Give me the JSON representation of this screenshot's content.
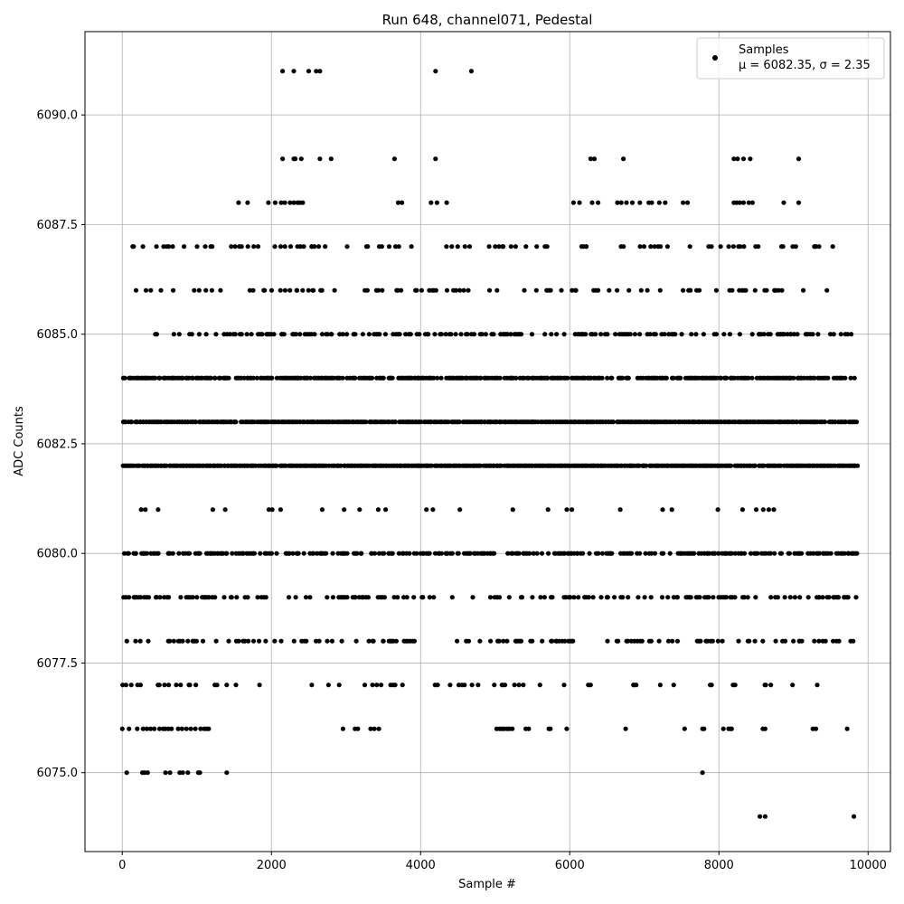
{
  "chart_data": {
    "type": "scatter",
    "title": "Run 648, channel071, Pedestal",
    "xlabel": "Sample #",
    "ylabel": "ADC Counts",
    "xlim": [
      -500,
      10300
    ],
    "ylim": [
      6073.2,
      6091.9
    ],
    "xticks": [
      0,
      2000,
      4000,
      6000,
      8000,
      10000
    ],
    "xtick_labels": [
      "0",
      "2000",
      "4000",
      "6000",
      "8000",
      "10000"
    ],
    "yticks": [
      6075.0,
      6077.5,
      6080.0,
      6082.5,
      6085.0,
      6087.5,
      6090.0
    ],
    "ytick_labels": [
      "6075.0",
      "6077.5",
      "6080.0",
      "6082.5",
      "6085.0",
      "6087.5",
      "6090.0"
    ],
    "grid": true,
    "legend_position": "top-right",
    "marker_color": "#000000",
    "series": [
      {
        "name": "Samples",
        "legend_stats": "μ = 6082.35, σ = 2.35",
        "n_samples": 9800,
        "mean": 6082.35,
        "std": 2.35,
        "levels": [
          {
            "y": 6091,
            "x": [
              2150,
              2300,
              2500,
              2600,
              2650,
              4200,
              4680
            ]
          },
          {
            "y": 6089,
            "x": [
              2150,
              2300,
              2320,
              2400,
              2650,
              2800,
              3650,
              4200,
              6280,
              6330,
              6720,
              8200,
              8250,
              8330,
              8420,
              9070
            ]
          },
          {
            "y": 6088,
            "x": [
              1560,
              1680,
              1960,
              2050,
              2130,
              2180,
              2250,
              2300,
              2350,
              2380,
              2420,
              3700,
              3750,
              4140,
              4220,
              4350,
              6050,
              6130,
              6300,
              6380,
              6640,
              6690,
              6760,
              6840,
              6940,
              7060,
              7100,
              7200,
              7280,
              7520,
              7580,
              8200,
              8240,
              8280,
              8330,
              8400,
              8450,
              8870,
              9070
            ]
          },
          {
            "y": 6087,
            "dense": [
              [
                1450,
                2800
              ],
              [
                3400,
                5000
              ],
              [
                6000,
                7200
              ],
              [
                8200,
                8400
              ],
              [
                8800,
                9050
              ]
            ],
            "density": 0.8,
            "range": [
              80,
              9700
            ]
          },
          {
            "y": 6086,
            "dense": [
              [
                1550,
                2700
              ],
              [
                3200,
                4500
              ],
              [
                5900,
                7300
              ],
              [
                8100,
                8450
              ]
            ],
            "density": 0.7,
            "range": [
              100,
              9650
            ]
          },
          {
            "y": 6085,
            "dense": [
              [
                1400,
                2900
              ],
              [
                3300,
                5700
              ],
              [
                6000,
                9800
              ]
            ],
            "density": 1.1,
            "range": [
              180,
              9800
            ]
          },
          {
            "y": 6084,
            "dense": [
              [
                0,
                9800
              ]
            ],
            "density": 2.0,
            "range": [
              0,
              9800
            ]
          },
          {
            "y": 6083,
            "dense": [
              [
                0,
                9850
              ]
            ],
            "density": 4.0,
            "range": [
              0,
              9850
            ]
          },
          {
            "y": 6082,
            "dense": [
              [
                0,
                9850
              ]
            ],
            "density": 5.0,
            "range": [
              0,
              9850
            ]
          },
          {
            "y": 6081,
            "dense": [
              [
                1800,
                2100
              ],
              [
                3300,
                3600
              ],
              [
                5500,
                5900
              ],
              [
                7200,
                7450
              ],
              [
                8400,
                8700
              ]
            ],
            "density": 0.25,
            "range": [
              60,
              9600
            ]
          },
          {
            "y": 6080,
            "dense": [
              [
                0,
                9850
              ]
            ],
            "density": 1.6,
            "range": [
              0,
              9850
            ]
          },
          {
            "y": 6079,
            "dense": [
              [
                0,
                1900
              ],
              [
                2800,
                4000
              ],
              [
                4900,
                6100
              ],
              [
                7300,
                8400
              ],
              [
                9300,
                9850
              ]
            ],
            "density": 1.0,
            "range": [
              0,
              9850
            ]
          },
          {
            "y": 6078,
            "dense": [
              [
                0,
                1800
              ],
              [
                2800,
                4000
              ],
              [
                4800,
                6100
              ],
              [
                7700,
                8100
              ],
              [
                8550,
                8800
              ],
              [
                9050,
                9850
              ]
            ],
            "density": 0.9,
            "range": [
              0,
              9850
            ]
          },
          {
            "y": 6077,
            "dense": [
              [
                0,
                1300
              ],
              [
                2850,
                3650
              ],
              [
                5000,
                5450
              ]
            ],
            "density": 0.55,
            "range": [
              0,
              9850
            ]
          },
          {
            "y": 6076,
            "x": [
              0,
              90,
              200,
              280,
              330,
              380,
              430,
              500,
              550,
              580,
              620,
              660,
              750,
              800,
              860,
              920,
              980,
              1050,
              1100,
              1130,
              1160,
              2960,
              3120,
              3160,
              3330,
              3380,
              3440,
              5020,
              5060,
              5090,
              5120,
              5160,
              5190,
              5230,
              5410,
              5450,
              5720,
              5740,
              5960,
              6750,
              7540,
              7780,
              7800,
              8060,
              8130,
              8160,
              8170,
              8590,
              8620,
              9260,
              9300,
              9720
            ]
          },
          {
            "y": 6075,
            "x": [
              60,
              270,
              300,
              340,
              580,
              640,
              770,
              810,
              880,
              1020,
              1040,
              1400,
              7780
            ]
          },
          {
            "y": 6074,
            "x": [
              8550,
              8620,
              9810
            ]
          }
        ]
      }
    ]
  }
}
